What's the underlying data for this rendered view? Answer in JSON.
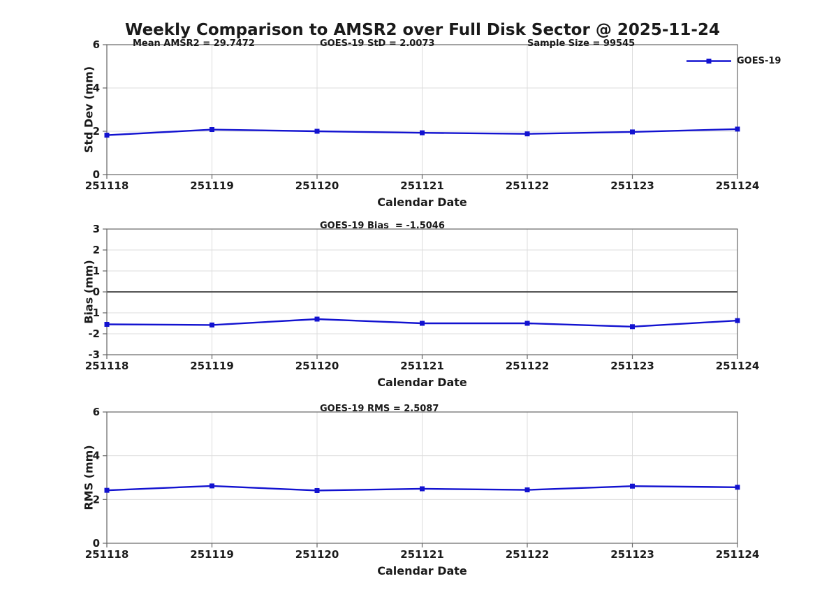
{
  "figure": {
    "title": "Weekly Comparison to AMSR2 over Full Disk Sector @ 2025-11-24",
    "colors": {
      "line": "#1212d0",
      "grid": "#dcdcdc",
      "axis": "#666666",
      "zero": "#3c3c3c",
      "text": "#1a1a1a",
      "background": "#ffffff"
    }
  },
  "chart_data": [
    {
      "id": "stddev-plot",
      "type": "line",
      "ylabel": "Std Dev (mm)",
      "xlabel": "Calendar Date",
      "ylim": [
        0,
        6
      ],
      "yticks": [
        0,
        2,
        4,
        6
      ],
      "grid": true,
      "categories": [
        "251118",
        "251119",
        "251120",
        "251121",
        "251122",
        "251123",
        "251124"
      ],
      "series": [
        {
          "name": "GOES-19",
          "values": [
            1.82,
            2.08,
            2.0,
            1.93,
            1.88,
            1.97,
            2.1
          ]
        }
      ],
      "annotations": {
        "left": "Mean AMSR2 = 29.7472",
        "center": "GOES-19 StD = 2.0073",
        "right": "Sample Size = 99545"
      },
      "legend": {
        "label": "GOES-19",
        "position": "top-right-outside"
      }
    },
    {
      "id": "bias-plot",
      "type": "line",
      "ylabel": "Bias (mm)",
      "xlabel": "Calendar Date",
      "ylim": [
        -3,
        3
      ],
      "yticks": [
        -3,
        -2,
        -1,
        0,
        1,
        2,
        3
      ],
      "zero_line": true,
      "grid": true,
      "categories": [
        "251118",
        "251119",
        "251120",
        "251121",
        "251122",
        "251123",
        "251124"
      ],
      "series": [
        {
          "name": "GOES-19",
          "values": [
            -1.55,
            -1.58,
            -1.3,
            -1.5,
            -1.5,
            -1.66,
            -1.37
          ]
        }
      ],
      "annotations": {
        "center": "GOES-19 Bias  = -1.5046"
      }
    },
    {
      "id": "rms-plot",
      "type": "line",
      "ylabel": "RMS (mm)",
      "xlabel": "Calendar Date",
      "ylim": [
        0,
        6
      ],
      "yticks": [
        0,
        2,
        4,
        6
      ],
      "grid": true,
      "categories": [
        "251118",
        "251119",
        "251120",
        "251121",
        "251122",
        "251123",
        "251124"
      ],
      "series": [
        {
          "name": "GOES-19",
          "values": [
            2.42,
            2.62,
            2.41,
            2.49,
            2.44,
            2.61,
            2.56
          ]
        }
      ],
      "annotations": {
        "center": "GOES-19 RMS = 2.5087"
      }
    }
  ]
}
